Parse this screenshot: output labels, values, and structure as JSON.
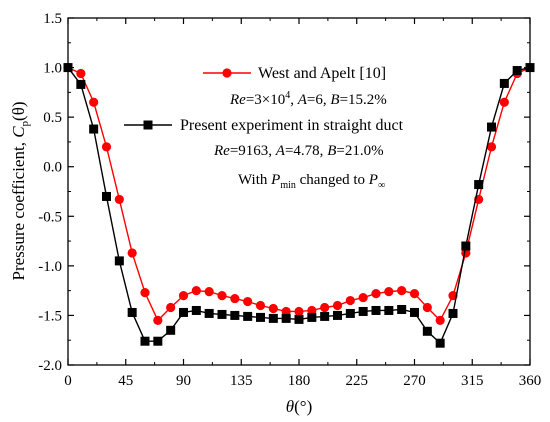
{
  "chart_data": {
    "type": "line",
    "xlabel_symbol": "θ",
    "xlabel_unit": "(°)",
    "ylabel_text": "Pressure coefficient, ",
    "ylabel_symbol": "C",
    "ylabel_sub": "p",
    "ylabel_arg": "(θ)",
    "xlim": [
      0,
      360
    ],
    "ylim": [
      -2.0,
      1.5
    ],
    "xticks": [
      0,
      45,
      90,
      135,
      180,
      225,
      270,
      315,
      360
    ],
    "xtick_labels": [
      "0",
      "45",
      "90",
      "135",
      "180",
      "225",
      "270",
      "315",
      "360"
    ],
    "yticks": [
      -2.0,
      -1.5,
      -1.0,
      -0.5,
      0.0,
      0.5,
      1.0,
      1.5
    ],
    "ytick_labels": [
      "-2.0",
      "-1.5",
      "-1.0",
      "-0.5",
      "0.0",
      "0.5",
      "1.0",
      "1.5"
    ],
    "grid": false,
    "series": [
      {
        "name": "West and Apelt [10]",
        "color": "#ff0000",
        "marker": "circle",
        "x": [
          0,
          10,
          20,
          30,
          40,
          50,
          60,
          70,
          80,
          90,
          100,
          110,
          120,
          130,
          140,
          150,
          160,
          170,
          180,
          190,
          200,
          210,
          220,
          230,
          240,
          250,
          260,
          270,
          280,
          290,
          300,
          310,
          320,
          330,
          340,
          350,
          360
        ],
        "values": [
          1.0,
          0.94,
          0.65,
          0.2,
          -0.33,
          -0.87,
          -1.27,
          -1.55,
          -1.42,
          -1.3,
          -1.25,
          -1.26,
          -1.3,
          -1.33,
          -1.36,
          -1.4,
          -1.43,
          -1.46,
          -1.46,
          -1.45,
          -1.42,
          -1.4,
          -1.35,
          -1.32,
          -1.28,
          -1.26,
          -1.25,
          -1.28,
          -1.42,
          -1.55,
          -1.3,
          -0.87,
          -0.33,
          0.2,
          0.65,
          0.94,
          1.0
        ]
      },
      {
        "name": "Present experiment in straight duct",
        "color": "#000000",
        "marker": "square",
        "x": [
          0,
          10,
          20,
          30,
          40,
          50,
          60,
          70,
          80,
          90,
          100,
          110,
          120,
          130,
          140,
          150,
          160,
          170,
          180,
          190,
          200,
          210,
          220,
          230,
          240,
          250,
          260,
          270,
          280,
          290,
          300,
          310,
          320,
          330,
          340,
          350,
          360
        ],
        "values": [
          1.0,
          0.83,
          0.38,
          -0.3,
          -0.95,
          -1.47,
          -1.76,
          -1.76,
          -1.65,
          -1.47,
          -1.45,
          -1.48,
          -1.49,
          -1.5,
          -1.51,
          -1.52,
          -1.53,
          -1.53,
          -1.54,
          -1.52,
          -1.51,
          -1.5,
          -1.48,
          -1.46,
          -1.45,
          -1.45,
          -1.44,
          -1.47,
          -1.66,
          -1.78,
          -1.48,
          -0.8,
          -0.18,
          0.4,
          0.84,
          0.97,
          1.0
        ]
      }
    ],
    "legend": {
      "placement": "top-center",
      "entries": [
        {
          "label": "West and Apelt [10]",
          "sub": {
            "re": "Re",
            "re_val": "=3×10",
            "re_sup": "4",
            "a": "A",
            "a_val": "=6, ",
            "b": "B",
            "b_val": "=15.2%"
          }
        },
        {
          "label": "Present experiment in straight duct",
          "sub": {
            "re": "Re",
            "re_val": "=9163, ",
            "a": "A",
            "a_val": "=4.78, ",
            "b": "B",
            "b_val": "=21.0%"
          }
        }
      ]
    },
    "annotation": {
      "pre": "With ",
      "p1": "P",
      "p1_sub": "min",
      "mid": "changed to ",
      "p2": "P",
      "p2_sub": "∞"
    }
  }
}
